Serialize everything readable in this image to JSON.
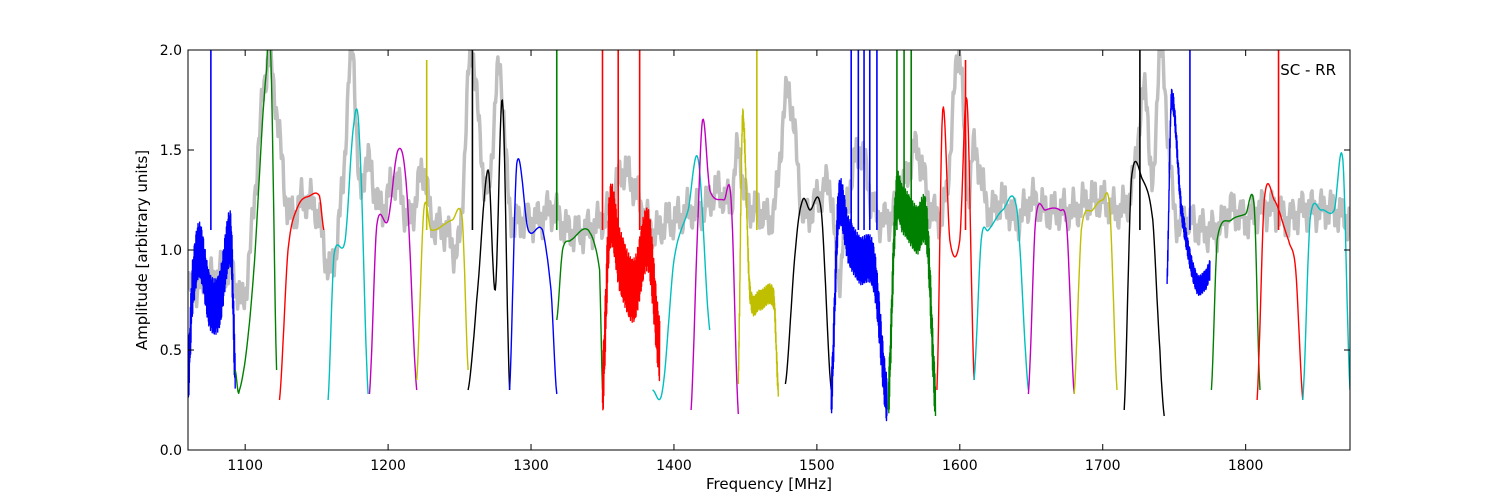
{
  "chart_data": {
    "type": "line",
    "title": "",
    "xlabel": "Frequency [MHz]",
    "ylabel": "Amplitude [arbitrary units]",
    "xlim": [
      1060,
      1873
    ],
    "ylim": [
      0.0,
      2.0
    ],
    "x_ticks": [
      1100,
      1200,
      1300,
      1400,
      1500,
      1600,
      1700,
      1800
    ],
    "y_ticks": [
      0.0,
      0.5,
      1.0,
      1.5,
      2.0
    ],
    "x_tick_labels": [
      "1100",
      "1200",
      "1300",
      "1400",
      "1500",
      "1600",
      "1700",
      "1800"
    ],
    "y_tick_labels": [
      "0.0",
      "0.5",
      "1.0",
      "1.5",
      "2.0"
    ],
    "annotation": "SC - RR",
    "annotation_position": "top-right",
    "grid": false,
    "legend": "none",
    "background_series": {
      "color": "#c0c0c0",
      "x": [
        1060,
        1075,
        1090,
        1100,
        1115,
        1120,
        1130,
        1140,
        1150,
        1160,
        1168,
        1175,
        1180,
        1185,
        1195,
        1205,
        1215,
        1225,
        1230,
        1240,
        1250,
        1258,
        1265,
        1270,
        1278,
        1285,
        1295,
        1305,
        1315,
        1325,
        1340,
        1355,
        1365,
        1385,
        1395,
        1400,
        1410,
        1420,
        1430,
        1440,
        1445,
        1450,
        1460,
        1470,
        1480,
        1490,
        1500,
        1510,
        1515,
        1520,
        1530,
        1540,
        1550,
        1560,
        1570,
        1580,
        1590,
        1600,
        1605,
        1610,
        1620,
        1630,
        1640,
        1650,
        1660,
        1670,
        1680,
        1690,
        1700,
        1710,
        1720,
        1730,
        1735,
        1740,
        1750,
        1760,
        1770,
        1780,
        1790,
        1800,
        1810,
        1820,
        1830,
        1840,
        1850,
        1860,
        1873
      ],
      "y": [
        0.8,
        0.85,
        0.9,
        0.8,
        1.9,
        1.8,
        1.2,
        1.25,
        1.2,
        0.9,
        1.3,
        2.0,
        1.3,
        1.45,
        1.2,
        1.35,
        1.15,
        1.4,
        1.15,
        1.1,
        1.05,
        2.0,
        1.5,
        1.3,
        1.9,
        1.2,
        1.15,
        1.15,
        1.2,
        1.1,
        1.1,
        1.2,
        1.4,
        1.1,
        1.15,
        1.15,
        1.2,
        1.2,
        1.3,
        1.25,
        1.5,
        1.25,
        1.2,
        1.2,
        1.8,
        1.2,
        1.25,
        1.3,
        0.85,
        1.2,
        1.5,
        1.2,
        1.15,
        1.3,
        1.5,
        1.2,
        1.25,
        2.0,
        1.3,
        1.5,
        1.2,
        1.25,
        1.15,
        1.25,
        1.2,
        1.2,
        1.2,
        1.25,
        1.25,
        1.2,
        1.3,
        1.8,
        1.3,
        2.0,
        1.2,
        1.15,
        1.1,
        1.1,
        1.2,
        1.15,
        1.2,
        1.2,
        1.15,
        1.2,
        1.2,
        1.2,
        1.15
      ]
    },
    "series": [
      {
        "color": "#0000ff",
        "x": [
          1060,
          1063,
          1068,
          1075,
          1082,
          1090,
          1093
        ],
        "y": [
          0.35,
          0.8,
          1.0,
          0.75,
          0.75,
          1.05,
          0.4
        ],
        "noise": 0.14
      },
      {
        "color": "#008000",
        "x": [
          1093,
          1096,
          1105,
          1115,
          1118,
          1122
        ],
        "y": [
          0.4,
          0.3,
          0.8,
          1.9,
          1.95,
          0.4
        ]
      },
      {
        "color": "#ff0000",
        "x": [
          1124,
          1130,
          1137,
          1145,
          1152,
          1155
        ],
        "y": [
          0.25,
          1.0,
          1.22,
          1.27,
          1.27,
          1.1
        ]
      },
      {
        "color": "#00bfbf",
        "x": [
          1158,
          1162,
          1170,
          1176,
          1180,
          1186
        ],
        "y": [
          0.25,
          0.97,
          1.05,
          1.63,
          1.55,
          0.28
        ]
      },
      {
        "color": "#bf00bf",
        "x": [
          1187,
          1192,
          1200,
          1207,
          1213,
          1220
        ],
        "y": [
          0.28,
          1.12,
          1.15,
          1.5,
          1.3,
          0.3
        ]
      },
      {
        "color": "#bfbf00",
        "x": [
          1220,
          1225,
          1230,
          1245,
          1252,
          1256
        ],
        "y": [
          0.35,
          1.2,
          1.1,
          1.15,
          1.15,
          0.4
        ]
      },
      {
        "color": "#000000",
        "x": [
          1256,
          1262,
          1270,
          1275,
          1280,
          1285
        ],
        "y": [
          0.3,
          0.75,
          1.4,
          0.8,
          1.75,
          0.3
        ]
      },
      {
        "color": "#0000ff",
        "x": [
          1285,
          1290,
          1298,
          1308,
          1314,
          1318
        ],
        "y": [
          0.3,
          1.43,
          1.1,
          1.1,
          0.8,
          0.28
        ]
      },
      {
        "color": "#008000",
        "x": [
          1318,
          1322,
          1328,
          1340,
          1348,
          1350
        ],
        "y": [
          0.65,
          1.0,
          1.05,
          1.1,
          0.9,
          0.3
        ]
      },
      {
        "color": "#ff0000",
        "x": [
          1350,
          1355,
          1362,
          1372,
          1382,
          1390
        ],
        "y": [
          0.3,
          1.15,
          0.95,
          0.8,
          1.05,
          0.5
        ],
        "noise": 0.16
      },
      {
        "color": "#00bfbf",
        "x": [
          1385,
          1392,
          1400,
          1410,
          1417,
          1425
        ],
        "y": [
          0.3,
          0.3,
          0.95,
          1.2,
          1.45,
          0.6
        ]
      },
      {
        "color": "#bf00bf",
        "x": [
          1412,
          1416,
          1420,
          1425,
          1435,
          1440,
          1445
        ],
        "y": [
          0.2,
          1.0,
          1.65,
          1.3,
          1.25,
          1.25,
          0.18
        ]
      },
      {
        "color": "#bfbf00",
        "x": [
          1445,
          1448,
          1453,
          1460,
          1470,
          1473
        ],
        "y": [
          0.35,
          1.65,
          0.8,
          0.75,
          0.75,
          0.3
        ],
        "noise": 0.05
      },
      {
        "color": "#000000",
        "x": [
          1478,
          1485,
          1490,
          1495,
          1503,
          1510
        ],
        "y": [
          0.33,
          1.0,
          1.25,
          1.2,
          1.2,
          0.3
        ]
      },
      {
        "color": "#0000ff",
        "x": [
          1510,
          1515,
          1522,
          1530,
          1540,
          1549
        ],
        "y": [
          0.25,
          1.2,
          1.05,
          0.95,
          0.9,
          0.25
        ],
        "noise": 0.12
      },
      {
        "color": "#008000",
        "x": [
          1550,
          1555,
          1560,
          1570,
          1577,
          1583
        ],
        "y": [
          0.25,
          1.2,
          1.2,
          1.1,
          1.1,
          0.25
        ],
        "noise": 0.12
      },
      {
        "color": "#ff0000",
        "x": [
          1584,
          1588,
          1593,
          1600,
          1605,
          1610
        ],
        "y": [
          0.3,
          1.7,
          1.05,
          1.05,
          1.75,
          0.35
        ]
      },
      {
        "color": "#00bfbf",
        "x": [
          1610,
          1615,
          1620,
          1630,
          1640,
          1648
        ],
        "y": [
          0.35,
          1.05,
          1.1,
          1.2,
          1.2,
          0.3
        ]
      },
      {
        "color": "#bf00bf",
        "x": [
          1648,
          1653,
          1660,
          1670,
          1675,
          1680
        ],
        "y": [
          0.28,
          1.15,
          1.2,
          1.2,
          1.1,
          0.28
        ]
      },
      {
        "color": "#bfbf00",
        "x": [
          1680,
          1685,
          1693,
          1700,
          1705,
          1710
        ],
        "y": [
          0.28,
          1.1,
          1.2,
          1.25,
          1.2,
          0.3
        ]
      },
      {
        "color": "#000000",
        "x": [
          1715,
          1720,
          1728,
          1735,
          1740,
          1743
        ],
        "y": [
          0.2,
          1.35,
          1.35,
          1.15,
          0.5,
          0.17
        ]
      },
      {
        "color": "#0000ff",
        "x": [
          1745,
          1748,
          1755,
          1765,
          1772,
          1775
        ],
        "y": [
          0.85,
          1.75,
          1.2,
          0.85,
          0.85,
          0.9
        ],
        "noise": 0.05
      },
      {
        "color": "#008000",
        "x": [
          1776,
          1780,
          1790,
          1800,
          1806,
          1810
        ],
        "y": [
          0.3,
          1.05,
          1.15,
          1.18,
          1.22,
          0.3
        ]
      },
      {
        "color": "#ff0000",
        "x": [
          1808,
          1813,
          1820,
          1830,
          1835,
          1840
        ],
        "y": [
          0.25,
          1.25,
          1.25,
          1.05,
          0.9,
          0.25
        ]
      },
      {
        "color": "#00bfbf",
        "x": [
          1840,
          1845,
          1853,
          1862,
          1868,
          1873
        ],
        "y": [
          0.25,
          1.15,
          1.2,
          1.2,
          1.45,
          0.3
        ]
      }
    ],
    "spikes": [
      {
        "color": "#0000ff",
        "x": 1076,
        "y": 2.0
      },
      {
        "color": "#bfbf00",
        "x": 1227,
        "y": 1.95
      },
      {
        "color": "#000000",
        "x": 1259,
        "y": 2.0
      },
      {
        "color": "#008000",
        "x": 1318,
        "y": 2.0
      },
      {
        "color": "#ff0000",
        "x": 1350,
        "y": 2.0
      },
      {
        "color": "#ff0000",
        "x": 1361,
        "y": 2.0
      },
      {
        "color": "#ff0000",
        "x": 1376,
        "y": 2.0
      },
      {
        "color": "#bfbf00",
        "x": 1458,
        "y": 2.0
      },
      {
        "color": "#0000ff",
        "x": 1524,
        "y": 2.0
      },
      {
        "color": "#0000ff",
        "x": 1529,
        "y": 2.0
      },
      {
        "color": "#0000ff",
        "x": 1533,
        "y": 2.0
      },
      {
        "color": "#0000ff",
        "x": 1537,
        "y": 2.0
      },
      {
        "color": "#0000ff",
        "x": 1542,
        "y": 2.0
      },
      {
        "color": "#008000",
        "x": 1556,
        "y": 2.0
      },
      {
        "color": "#008000",
        "x": 1561,
        "y": 2.0
      },
      {
        "color": "#008000",
        "x": 1566,
        "y": 2.0
      },
      {
        "color": "#ff0000",
        "x": 1604,
        "y": 1.95
      },
      {
        "color": "#000000",
        "x": 1726,
        "y": 2.0
      },
      {
        "color": "#0000ff",
        "x": 1761,
        "y": 2.0
      },
      {
        "color": "#ff0000",
        "x": 1823,
        "y": 2.0
      }
    ]
  }
}
